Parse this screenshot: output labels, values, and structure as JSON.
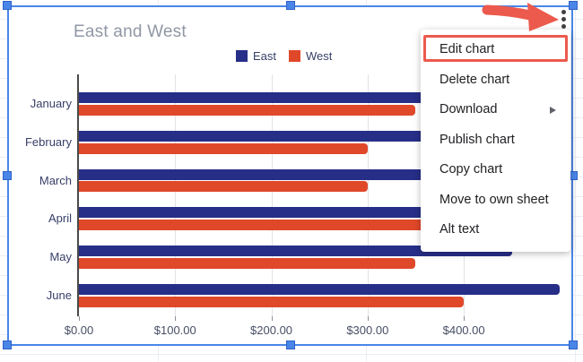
{
  "chart_data": {
    "type": "bar",
    "orientation": "horizontal",
    "title": "East and West",
    "categories": [
      "January",
      "February",
      "March",
      "April",
      "May",
      "June"
    ],
    "series": [
      {
        "name": "East",
        "color": "#272e87",
        "values": [
          450,
          450,
          450,
          450,
          450,
          500
        ]
      },
      {
        "name": "West",
        "color": "#e0482a",
        "values": [
          350,
          300,
          300,
          400,
          350,
          400
        ]
      }
    ],
    "x_ticks": [
      "$0.00",
      "$100.00",
      "$200.00",
      "$300.00",
      "$400.00"
    ],
    "x_tick_values": [
      0,
      100,
      200,
      300,
      400
    ],
    "xlim": [
      0,
      500
    ],
    "legend_position": "top",
    "grid": true
  },
  "context_menu": {
    "items": [
      {
        "label": "Edit chart",
        "highlighted": true
      },
      {
        "label": "Delete chart",
        "highlighted": false
      },
      {
        "label": "Download",
        "highlighted": false,
        "has_submenu": true
      },
      {
        "label": "Publish chart",
        "highlighted": false
      },
      {
        "label": "Copy chart",
        "highlighted": false
      },
      {
        "label": "Move to own sheet",
        "highlighted": false
      },
      {
        "label": "Alt text",
        "highlighted": false
      }
    ]
  },
  "selection": {
    "border_color": "#4a86e8"
  },
  "annotation": {
    "color": "#ec5a4d"
  }
}
